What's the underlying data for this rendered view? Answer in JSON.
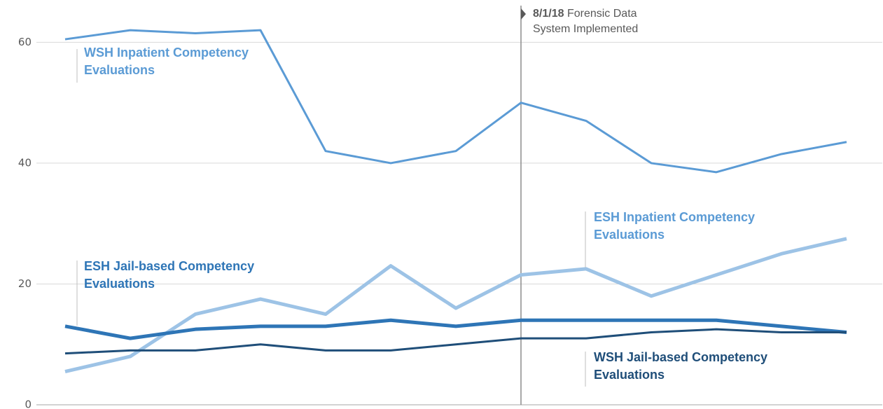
{
  "chart_data": {
    "type": "line",
    "categories": [
      null,
      null,
      null,
      null,
      null,
      null,
      null,
      null,
      null,
      null,
      null,
      null,
      null
    ],
    "series": [
      {
        "name": "WSH Inpatient Competency Evaluations",
        "color": "#5b9bd5",
        "line_width": 3,
        "values": [
          60.5,
          62,
          61.5,
          62,
          42,
          40,
          42,
          50,
          47,
          40,
          38.5,
          41.5,
          43.5
        ]
      },
      {
        "name": "ESH Inpatient Competency Evaluations",
        "color": "#9dc3e6",
        "line_width": 5,
        "values": [
          5.5,
          8,
          15,
          17.5,
          15,
          23,
          16,
          21.5,
          22.5,
          18,
          21.5,
          25,
          27.5
        ]
      },
      {
        "name": "ESH Jail-based Competency Evaluations",
        "color": "#2e75b6",
        "line_width": 5,
        "values": [
          13,
          11,
          12.5,
          13,
          13,
          14,
          13,
          14,
          14,
          14,
          14,
          13,
          12
        ]
      },
      {
        "name": "WSH Jail-based Competency Evaluations",
        "color": "#1f4e79",
        "line_width": 3,
        "values": [
          8.5,
          9,
          9,
          10,
          9,
          9,
          10,
          11,
          11,
          12,
          12.5,
          12,
          12
        ]
      }
    ],
    "annotation": {
      "label": "8/1/18",
      "text": "Forensic Data System Implemented",
      "at": 7
    },
    "ylim": [
      0,
      67
    ],
    "yticks": [
      0,
      20,
      40,
      60
    ],
    "grid": true
  }
}
